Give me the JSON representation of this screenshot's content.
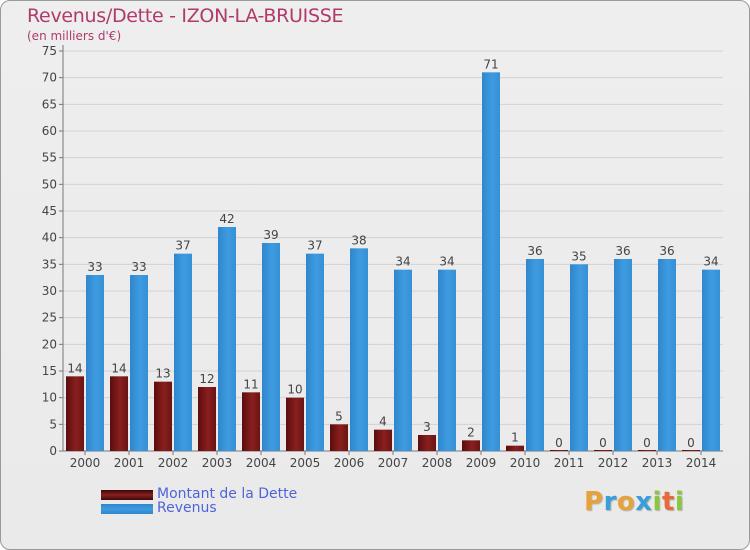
{
  "title": "Revenus/Dette - IZON-LA-BRUISSE",
  "subtitle": "(en milliers d'€)",
  "brand": {
    "letters": [
      "P",
      "r",
      "o",
      "x",
      "i",
      "t",
      "i"
    ],
    "colors": [
      "#e8a23a",
      "#3a9fd8",
      "#e8a23a",
      "#3a9fd8",
      "#8cc63f",
      "#e86a3a",
      "#8cc63f"
    ]
  },
  "chart_data": {
    "type": "bar",
    "categories": [
      "2000",
      "2001",
      "2002",
      "2003",
      "2004",
      "2005",
      "2006",
      "2007",
      "2008",
      "2009",
      "2010",
      "2011",
      "2012",
      "2013",
      "2014"
    ],
    "series": [
      {
        "name": "Montant de la Dette",
        "color": "#8a1f1f",
        "values": [
          14,
          14,
          13,
          12,
          11,
          10,
          5,
          4,
          3,
          2,
          1,
          0,
          0,
          0,
          0
        ]
      },
      {
        "name": "Revenus",
        "color": "#3f9be0",
        "values": [
          33,
          33,
          37,
          42,
          39,
          37,
          38,
          34,
          34,
          71,
          36,
          35,
          36,
          36,
          34
        ]
      }
    ],
    "ylim": [
      0,
      75
    ],
    "yticks": [
      0,
      5,
      10,
      15,
      20,
      25,
      30,
      35,
      40,
      45,
      50,
      55,
      60,
      65,
      70,
      75
    ],
    "grid": true,
    "legend_position": "bottom-left"
  }
}
